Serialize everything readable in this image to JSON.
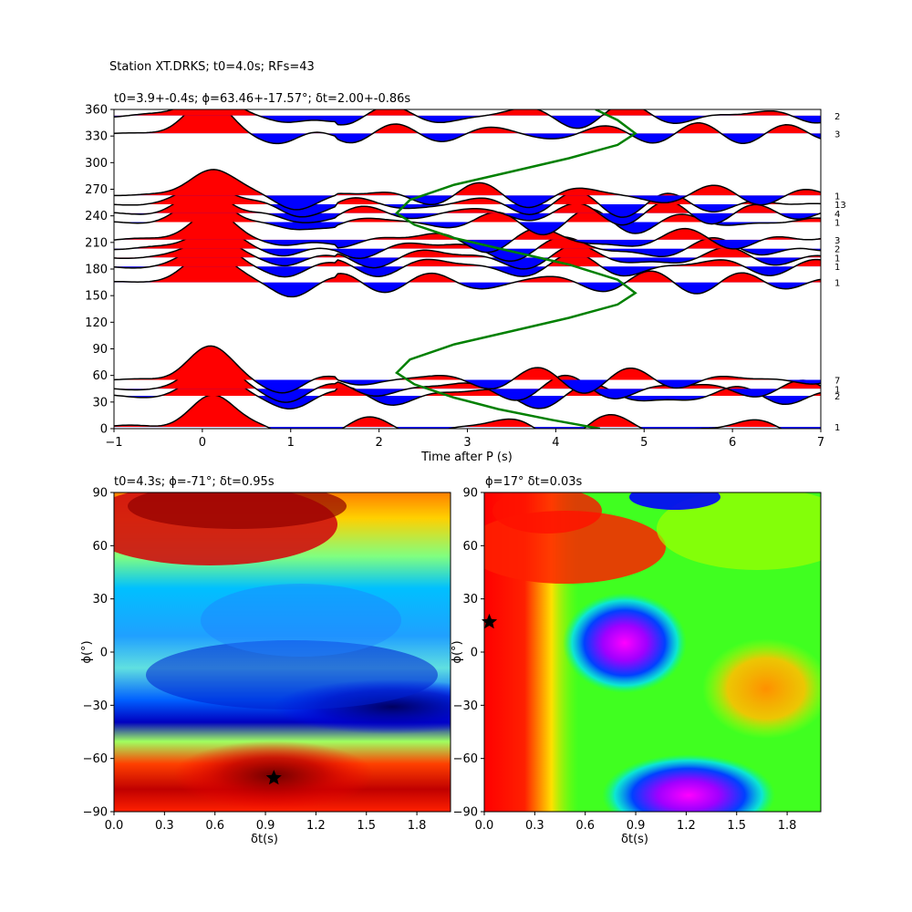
{
  "figure": {
    "suptitle": "Station XT.DRKS; t0=4.0s; RFs=43"
  },
  "panels": {
    "top": {
      "title": "t0=3.9+-0.4s; ϕ=63.46+-17.57°; δt=2.00+-0.86s",
      "xlabel": "Time after P (s)"
    },
    "bottom_left": {
      "title": "t0=4.3s; ϕ=-71°; δt=0.95s",
      "xlabel": "δt(s)",
      "ylabel": "ϕ(°)"
    },
    "bottom_right": {
      "title": "ϕ=17° δt=0.03s",
      "xlabel": "δt(s)",
      "ylabel": "ϕ(°)"
    }
  },
  "chart_data": [
    {
      "type": "line",
      "description_key": "receiver-function traces stacked by back-azimuth",
      "xlim": [
        -1,
        7
      ],
      "ylim": [
        0,
        360
      ],
      "xticks": [
        -1,
        0,
        1,
        2,
        3,
        4,
        5,
        6,
        7
      ],
      "yticks": [
        0,
        30,
        60,
        90,
        120,
        150,
        180,
        210,
        240,
        270,
        300,
        330,
        360
      ],
      "grid": false,
      "fill_positive_color": "#ff0000",
      "fill_negative_color": "#0000ff",
      "traces": [
        {
          "baz": 2,
          "count": "1"
        },
        {
          "baz": 37,
          "count": "2"
        },
        {
          "baz": 45,
          "count": "1"
        },
        {
          "baz": 55,
          "count": "7"
        },
        {
          "baz": 165,
          "count": "1"
        },
        {
          "baz": 183,
          "count": "1"
        },
        {
          "baz": 193,
          "count": "1"
        },
        {
          "baz": 203,
          "count": "2"
        },
        {
          "baz": 213,
          "count": "3"
        },
        {
          "baz": 233,
          "count": "1"
        },
        {
          "baz": 243,
          "count": "4"
        },
        {
          "baz": 253,
          "count": "13"
        },
        {
          "baz": 263,
          "count": "1"
        },
        {
          "baz": 333,
          "count": "3"
        },
        {
          "baz": 353,
          "count": "2"
        }
      ],
      "pick_curve": {
        "color": "#008000",
        "x": [
          4.5,
          3.95,
          3.35,
          2.85,
          2.4,
          2.2,
          2.35,
          2.85,
          3.5,
          4.15,
          4.7,
          4.9,
          4.7,
          4.15,
          3.5,
          2.85,
          2.4,
          2.2,
          2.35,
          2.85,
          3.5,
          4.15,
          4.7,
          4.9,
          4.7,
          4.45
        ],
        "y": [
          0,
          10,
          22,
          35,
          50,
          63,
          78,
          95,
          110,
          125,
          140,
          153,
          168,
          185,
          200,
          215,
          230,
          243,
          258,
          275,
          290,
          305,
          320,
          333,
          348,
          360
        ]
      }
    },
    {
      "type": "heatmap",
      "xlim": [
        0,
        2
      ],
      "ylim": [
        -90,
        90
      ],
      "xticks": [
        0.0,
        0.3,
        0.6,
        0.9,
        1.2,
        1.5,
        1.8
      ],
      "yticks": [
        -90,
        -60,
        -30,
        0,
        30,
        60,
        90
      ],
      "colormap": "jet",
      "best": {
        "dt": 0.95,
        "phi": -71
      }
    },
    {
      "type": "heatmap",
      "xlim": [
        0,
        2
      ],
      "ylim": [
        -90,
        90
      ],
      "xticks": [
        0.0,
        0.3,
        0.6,
        0.9,
        1.2,
        1.5,
        1.8
      ],
      "yticks": [
        -90,
        -60,
        -30,
        0,
        30,
        60,
        90
      ],
      "colormap": "hsv",
      "best": {
        "dt": 0.03,
        "phi": 17
      }
    }
  ]
}
